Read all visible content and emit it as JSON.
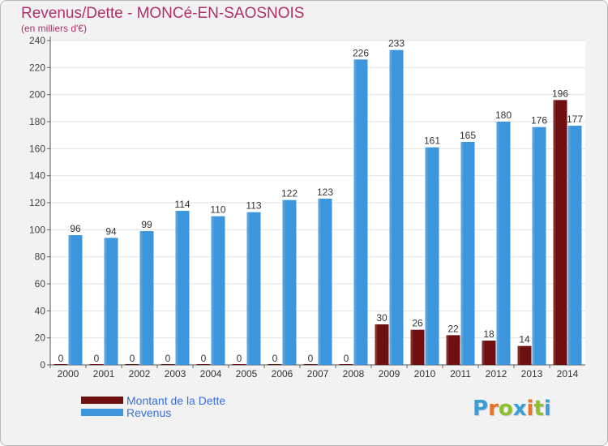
{
  "title": "Revenus/Dette - MONCé-EN-SAOSNOIS",
  "subtitle": "(en milliers d'€)",
  "logo": {
    "text": "Proxiti",
    "letter_colors": [
      "#3a9fd8",
      "#e6732c",
      "#8dbf2e",
      "#3a9fd8",
      "#e6732c",
      "#8dbf2e",
      "#3a9fd8"
    ]
  },
  "colors": {
    "dette": "#6e1010",
    "revenus": "#3d95dc",
    "title": "#b0306a",
    "legend_text": "#3a6fd8"
  },
  "legend": [
    {
      "label": "Montant de la Dette",
      "color": "#6e1010"
    },
    {
      "label": "Revenus",
      "color": "#3d95dc"
    }
  ],
  "chart_data": {
    "type": "bar",
    "categories": [
      "2000",
      "2001",
      "2002",
      "2003",
      "2004",
      "2005",
      "2006",
      "2007",
      "2008",
      "2009",
      "2010",
      "2011",
      "2012",
      "2013",
      "2014"
    ],
    "series": [
      {
        "name": "Montant de la Dette",
        "color": "#6e1010",
        "values": [
          0,
          0,
          0,
          0,
          0,
          0,
          0,
          0,
          0,
          30,
          26,
          22,
          18,
          14,
          196
        ]
      },
      {
        "name": "Revenus",
        "color": "#3d95dc",
        "values": [
          96,
          94,
          99,
          114,
          110,
          113,
          122,
          123,
          226,
          233,
          161,
          165,
          180,
          176,
          177
        ]
      }
    ],
    "ylim": [
      0,
      240
    ],
    "yticks": [
      0,
      20,
      40,
      60,
      80,
      100,
      120,
      140,
      160,
      180,
      200,
      220,
      240
    ],
    "grid": true,
    "legend_position": "bottom-left"
  }
}
